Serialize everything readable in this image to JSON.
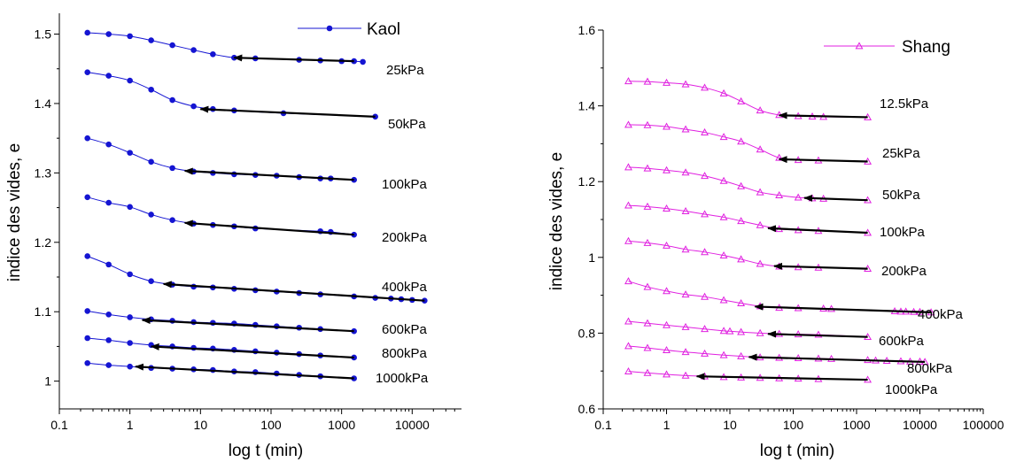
{
  "chart_data": [
    {
      "type": "line",
      "xlabel": "log t (min)",
      "ylabel": "indice des vides, e",
      "xscale": "log",
      "xlim": [
        0.1,
        50000
      ],
      "ylim": [
        0.96,
        1.53
      ],
      "xticks": [
        "0.1",
        "1",
        "10",
        "100",
        "1000",
        "10000"
      ],
      "yticks": [
        "1",
        "1.1",
        "1.2",
        "1.3",
        "1.4",
        "1.5"
      ],
      "legend": {
        "label": "Kaol",
        "position": "top-right",
        "marker": "circle"
      },
      "series_color": "#1515d2",
      "series": [
        {
          "label": "25kPa",
          "x": [
            0.25,
            0.5,
            1,
            2,
            4,
            8,
            15,
            30,
            60,
            250,
            500,
            1000,
            1500,
            2000
          ],
          "y": [
            1.502,
            1.5,
            1.497,
            1.491,
            1.484,
            1.477,
            1.471,
            1.466,
            1.465,
            1.463,
            1.462,
            1.461,
            1.461,
            1.46
          ],
          "arrow": {
            "from": [
              1500,
              1.461
            ],
            "to": [
              30,
              1.466
            ]
          }
        },
        {
          "label": "50kPa",
          "x": [
            0.25,
            0.5,
            1,
            2,
            4,
            8,
            15,
            30,
            150,
            3000
          ],
          "y": [
            1.445,
            1.44,
            1.433,
            1.42,
            1.405,
            1.396,
            1.392,
            1.39,
            1.386,
            1.381
          ],
          "arrow": {
            "from": [
              3000,
              1.381
            ],
            "to": [
              10,
              1.392
            ]
          }
        },
        {
          "label": "100kPa",
          "x": [
            0.25,
            0.5,
            1,
            2,
            4,
            8,
            15,
            30,
            60,
            120,
            250,
            500,
            700,
            1500
          ],
          "y": [
            1.35,
            1.341,
            1.329,
            1.316,
            1.307,
            1.302,
            1.3,
            1.298,
            1.297,
            1.296,
            1.294,
            1.292,
            1.292,
            1.29
          ],
          "arrow": {
            "from": [
              1500,
              1.29
            ],
            "to": [
              6,
              1.303
            ]
          }
        },
        {
          "label": "200kPa",
          "x": [
            0.25,
            0.5,
            1,
            2,
            4,
            8,
            15,
            30,
            60,
            500,
            700,
            1500
          ],
          "y": [
            1.265,
            1.257,
            1.251,
            1.24,
            1.232,
            1.227,
            1.225,
            1.223,
            1.22,
            1.216,
            1.215,
            1.211
          ],
          "arrow": {
            "from": [
              1500,
              1.211
            ],
            "to": [
              6,
              1.228
            ]
          }
        },
        {
          "label": "400kPa",
          "x": [
            0.25,
            0.5,
            1,
            2,
            4,
            8,
            15,
            30,
            60,
            120,
            250,
            500,
            1500,
            3000,
            5000,
            7000,
            10000,
            15000
          ],
          "y": [
            1.18,
            1.168,
            1.154,
            1.144,
            1.139,
            1.136,
            1.135,
            1.133,
            1.131,
            1.129,
            1.127,
            1.125,
            1.122,
            1.12,
            1.119,
            1.118,
            1.117,
            1.116
          ],
          "arrow": {
            "from": [
              15000,
              1.116
            ],
            "to": [
              3,
              1.14
            ]
          }
        },
        {
          "label": "600kPa",
          "x": [
            0.25,
            0.5,
            1,
            2,
            4,
            8,
            15,
            30,
            60,
            120,
            250,
            500,
            1500
          ],
          "y": [
            1.101,
            1.096,
            1.092,
            1.089,
            1.087,
            1.085,
            1.084,
            1.083,
            1.081,
            1.079,
            1.077,
            1.075,
            1.072
          ],
          "arrow": {
            "from": [
              1500,
              1.072
            ],
            "to": [
              1.5,
              1.088
            ]
          }
        },
        {
          "label": "800kPa",
          "x": [
            0.25,
            0.5,
            1,
            2,
            4,
            8,
            15,
            30,
            60,
            120,
            250,
            500,
            1500
          ],
          "y": [
            1.062,
            1.059,
            1.055,
            1.052,
            1.05,
            1.048,
            1.047,
            1.045,
            1.043,
            1.041,
            1.039,
            1.037,
            1.034
          ],
          "arrow": {
            "from": [
              1500,
              1.034
            ],
            "to": [
              2,
              1.05
            ]
          }
        },
        {
          "label": "1000kPa",
          "x": [
            0.25,
            0.5,
            1,
            2,
            4,
            8,
            15,
            30,
            60,
            120,
            250,
            500,
            1500
          ],
          "y": [
            1.026,
            1.023,
            1.021,
            1.019,
            1.018,
            1.017,
            1.016,
            1.014,
            1.013,
            1.011,
            1.009,
            1.007,
            1.004
          ],
          "arrow": {
            "from": [
              1500,
              1.004
            ],
            "to": [
              1.2,
              1.021
            ]
          }
        }
      ]
    },
    {
      "type": "line",
      "xlabel": "log t (min)",
      "ylabel": "indice des vides, e",
      "xscale": "log",
      "xlim": [
        0.1,
        100000
      ],
      "ylim": [
        0.6,
        1.6
      ],
      "xticks": [
        "0.1",
        "1",
        "10",
        "100",
        "1000",
        "10000",
        "100000"
      ],
      "yticks": [
        "0.6",
        "0.8",
        "1",
        "1.2",
        "1.4",
        "1.6"
      ],
      "legend": {
        "label": "Shang",
        "position": "top-right",
        "marker": "triangle"
      },
      "series_color": "#e020e0",
      "series": [
        {
          "label": "12.5kPa",
          "x": [
            0.25,
            0.5,
            1,
            2,
            4,
            8,
            15,
            30,
            60,
            120,
            200,
            300,
            1500
          ],
          "y": [
            1.465,
            1.464,
            1.461,
            1.457,
            1.448,
            1.433,
            1.412,
            1.388,
            1.376,
            1.373,
            1.372,
            1.371,
            1.37
          ],
          "arrow": {
            "from": [
              1500,
              1.37
            ],
            "to": [
              60,
              1.375
            ]
          }
        },
        {
          "label": "25kPa",
          "x": [
            0.25,
            0.5,
            1,
            2,
            4,
            8,
            15,
            30,
            60,
            120,
            250,
            1500
          ],
          "y": [
            1.35,
            1.349,
            1.345,
            1.338,
            1.33,
            1.318,
            1.306,
            1.285,
            1.263,
            1.257,
            1.256,
            1.253
          ],
          "arrow": {
            "from": [
              1500,
              1.253
            ],
            "to": [
              60,
              1.259
            ]
          }
        },
        {
          "label": "50kPa",
          "x": [
            0.25,
            0.5,
            1,
            2,
            4,
            8,
            15,
            30,
            60,
            120,
            200,
            300,
            1500
          ],
          "y": [
            1.238,
            1.235,
            1.23,
            1.224,
            1.215,
            1.202,
            1.188,
            1.172,
            1.164,
            1.158,
            1.156,
            1.155,
            1.151
          ],
          "arrow": {
            "from": [
              1500,
              1.151
            ],
            "to": [
              150,
              1.157
            ]
          }
        },
        {
          "label": "100kPa",
          "x": [
            0.25,
            0.5,
            1,
            2,
            4,
            8,
            15,
            30,
            60,
            120,
            250,
            1500
          ],
          "y": [
            1.137,
            1.134,
            1.129,
            1.122,
            1.114,
            1.106,
            1.096,
            1.085,
            1.075,
            1.072,
            1.07,
            1.065
          ],
          "arrow": {
            "from": [
              1500,
              1.065
            ],
            "to": [
              40,
              1.077
            ]
          }
        },
        {
          "label": "200kPa",
          "x": [
            0.25,
            0.5,
            1,
            2,
            4,
            8,
            15,
            30,
            60,
            120,
            250,
            1500
          ],
          "y": [
            1.043,
            1.038,
            1.031,
            1.021,
            1.014,
            1.005,
            0.995,
            0.983,
            0.976,
            0.974,
            0.973,
            0.97
          ],
          "arrow": {
            "from": [
              1500,
              0.97
            ],
            "to": [
              50,
              0.977
            ]
          }
        },
        {
          "label": "400kPa",
          "x": [
            0.25,
            0.5,
            1,
            2,
            4,
            8,
            15,
            30,
            60,
            120,
            300,
            400,
            4000,
            5000,
            6000,
            8000,
            10000,
            15000
          ],
          "y": [
            0.937,
            0.922,
            0.911,
            0.902,
            0.896,
            0.887,
            0.879,
            0.871,
            0.867,
            0.866,
            0.865,
            0.864,
            0.858,
            0.857,
            0.857,
            0.856,
            0.856,
            0.855
          ],
          "arrow": {
            "from": [
              15000,
              0.855
            ],
            "to": [
              25,
              0.87
            ]
          }
        },
        {
          "label": "600kPa",
          "x": [
            0.25,
            0.5,
            1,
            2,
            4,
            8,
            10,
            15,
            30,
            60,
            120,
            250,
            1500
          ],
          "y": [
            0.831,
            0.826,
            0.821,
            0.816,
            0.811,
            0.806,
            0.805,
            0.803,
            0.8,
            0.798,
            0.797,
            0.796,
            0.79
          ],
          "arrow": {
            "from": [
              1500,
              0.79
            ],
            "to": [
              40,
              0.798
            ]
          }
        },
        {
          "label": "800kPa",
          "x": [
            0.25,
            0.5,
            1,
            2,
            4,
            8,
            15,
            30,
            60,
            120,
            250,
            400,
            1500,
            2000,
            3000,
            5000,
            7000,
            10000,
            12000
          ],
          "y": [
            0.766,
            0.761,
            0.755,
            0.75,
            0.746,
            0.742,
            0.739,
            0.736,
            0.735,
            0.734,
            0.733,
            0.732,
            0.729,
            0.728,
            0.727,
            0.726,
            0.725,
            0.725,
            0.724
          ],
          "arrow": {
            "from": [
              12000,
              0.724
            ],
            "to": [
              20,
              0.737
            ]
          }
        },
        {
          "label": "1000kPa",
          "x": [
            0.25,
            0.5,
            1,
            2,
            4,
            8,
            15,
            30,
            60,
            120,
            250,
            1500
          ],
          "y": [
            0.699,
            0.695,
            0.691,
            0.688,
            0.686,
            0.684,
            0.683,
            0.682,
            0.681,
            0.68,
            0.679,
            0.677
          ],
          "arrow": {
            "from": [
              1500,
              0.677
            ],
            "to": [
              3,
              0.686
            ]
          }
        }
      ]
    }
  ]
}
